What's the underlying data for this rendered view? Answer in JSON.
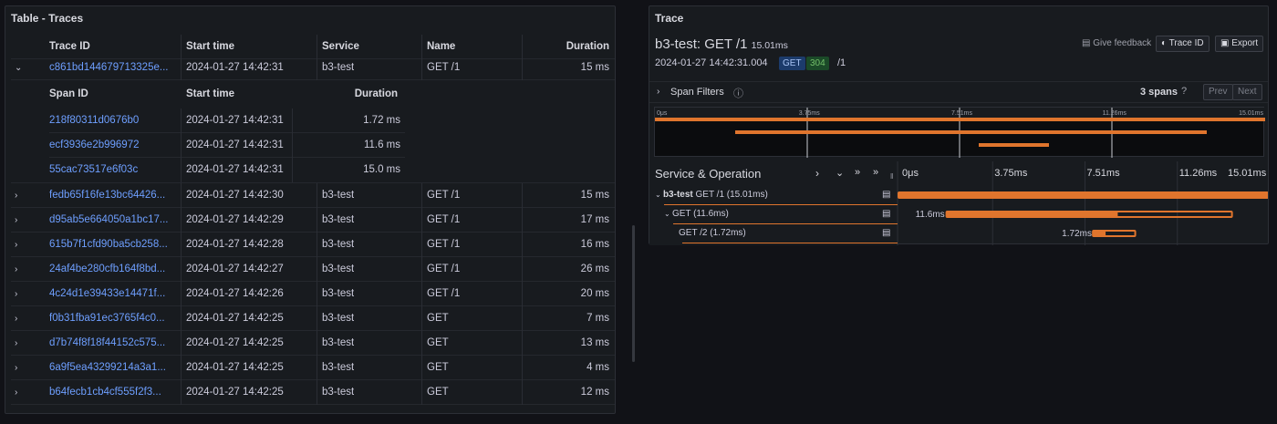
{
  "left_panel": {
    "title": "Table - Traces",
    "columns": [
      "Trace ID",
      "Start time",
      "Service",
      "Name",
      "Duration"
    ],
    "expanded_row": {
      "trace_id": "c861bd144679713325e...",
      "start_time": "2024-01-27 14:42:31",
      "service": "b3-test",
      "name": "GET /1",
      "duration": "15 ms"
    },
    "span_columns": [
      "Span ID",
      "Start time",
      "Duration"
    ],
    "spans": [
      {
        "span_id": "218f80311d0676b0",
        "start_time": "2024-01-27 14:42:31",
        "duration": "1.72 ms"
      },
      {
        "span_id": "ecf3936e2b996972",
        "start_time": "2024-01-27 14:42:31",
        "duration": "11.6 ms"
      },
      {
        "span_id": "55cac73517e6f03c",
        "start_time": "2024-01-27 14:42:31",
        "duration": "15.0 ms"
      }
    ],
    "rows": [
      {
        "trace_id": "fedb65f16fe13bc64426...",
        "start_time": "2024-01-27 14:42:30",
        "service": "b3-test",
        "name": "GET /1",
        "duration": "15 ms"
      },
      {
        "trace_id": "d95ab5e664050a1bc17...",
        "start_time": "2024-01-27 14:42:29",
        "service": "b3-test",
        "name": "GET /1",
        "duration": "17 ms"
      },
      {
        "trace_id": "615b7f1cfd90ba5cb258...",
        "start_time": "2024-01-27 14:42:28",
        "service": "b3-test",
        "name": "GET /1",
        "duration": "16 ms"
      },
      {
        "trace_id": "24af4be280cfb164f8bd...",
        "start_time": "2024-01-27 14:42:27",
        "service": "b3-test",
        "name": "GET /1",
        "duration": "26 ms"
      },
      {
        "trace_id": "4c24d1e39433e14471f...",
        "start_time": "2024-01-27 14:42:26",
        "service": "b3-test",
        "name": "GET /1",
        "duration": "20 ms"
      },
      {
        "trace_id": "f0b31fba91ec3765f4c0...",
        "start_time": "2024-01-27 14:42:25",
        "service": "b3-test",
        "name": "GET",
        "duration": "7 ms"
      },
      {
        "trace_id": "d7b74f8f18f44152c575...",
        "start_time": "2024-01-27 14:42:25",
        "service": "b3-test",
        "name": "GET",
        "duration": "13 ms"
      },
      {
        "trace_id": "6a9f5ea43299214a3a1...",
        "start_time": "2024-01-27 14:42:25",
        "service": "b3-test",
        "name": "GET",
        "duration": "4 ms"
      },
      {
        "trace_id": "b64fecb1cb4cf555f2f3...",
        "start_time": "2024-01-27 14:42:25",
        "service": "b3-test",
        "name": "GET",
        "duration": "12 ms"
      }
    ]
  },
  "trace_panel": {
    "title": "Trace",
    "trace_name": "b3-test: GET /1",
    "trace_duration": "15.01ms",
    "timestamp": "2024-01-27 14:42:31.004",
    "method_badge": "GET",
    "status_badge": "304",
    "path": "/1",
    "give_feedback": "Give feedback",
    "trace_id_button": "Trace ID",
    "export_button": "Export",
    "span_filters": "Span Filters",
    "span_count": "3 spans",
    "prev": "Prev",
    "next": "Next",
    "minimap_ticks": [
      "0μs",
      "3.75ms",
      "7.51ms",
      "11.26ms",
      "15.01ms"
    ],
    "header_label": "Service & Operation",
    "timeline_ticks": [
      "0μs",
      "3.75ms",
      "7.51ms",
      "11.26ms",
      "15.01ms"
    ],
    "spans": [
      {
        "service": "b3-test",
        "operation": "GET /1 (15.01ms)",
        "label": "",
        "start": 0,
        "duration": 15.01
      },
      {
        "service": "",
        "operation": "GET (11.6ms)",
        "label": "11.6ms",
        "start": 1.95,
        "duration": 11.6
      },
      {
        "service": "",
        "operation": "GET /2 (1.72ms)",
        "label": "1.72ms",
        "start": 7.9,
        "duration": 1.72
      }
    ],
    "total_ms": 15.01,
    "colors": {
      "span": "#e0752d",
      "accent": "#6e9fff",
      "status_green": "#73bf69"
    }
  }
}
